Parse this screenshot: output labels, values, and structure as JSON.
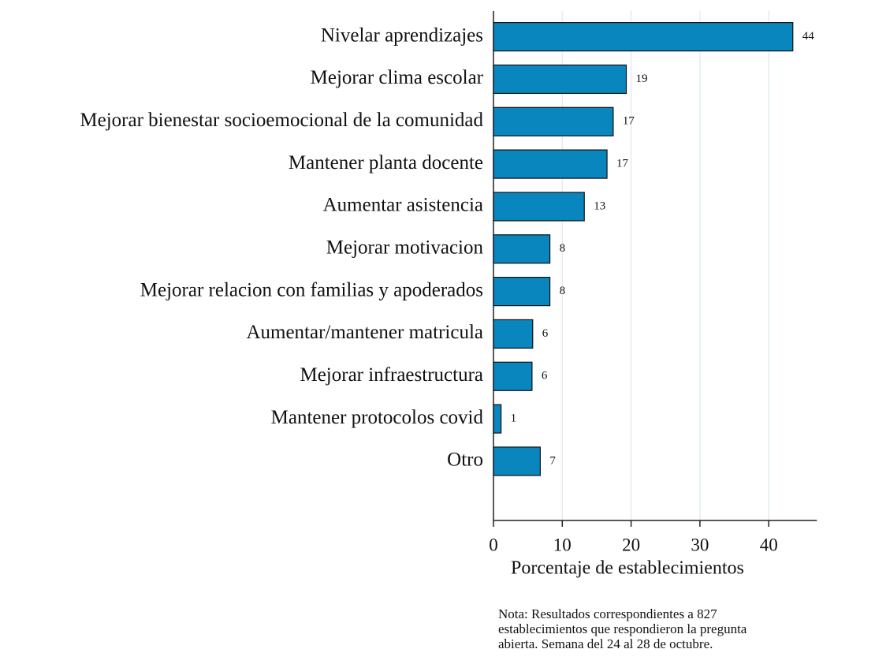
{
  "chart_data": {
    "type": "barh",
    "categories": [
      "Nivelar aprendizajes",
      "Mejorar clima escolar",
      "Mejorar bienestar socioemocional de la comunidad",
      "Mantener planta docente",
      "Aumentar asistencia",
      "Mejorar motivacion",
      "Mejorar relacion con familias y apoderados",
      "Aumentar/mantener matricula",
      "Mejorar infraestructura",
      "Mantener protocolos covid",
      "Otro"
    ],
    "values": [
      43.5,
      19.3,
      17.4,
      16.5,
      13.2,
      8.2,
      8.2,
      5.7,
      5.6,
      1.1,
      6.8
    ],
    "value_labels": [
      "44",
      "19",
      "17",
      "17",
      "13",
      "8",
      "8",
      "6",
      "6",
      "1",
      "7"
    ],
    "color": "#0a86bf",
    "xlim": [
      0,
      47
    ],
    "xticks": [
      0,
      10,
      20,
      30,
      40
    ],
    "grid": true,
    "xlabel": "Porcentaje de establecimientos",
    "note": [
      "Nota: Resultados correspondientes a 827",
      "establecimientos que respondieron la pregunta",
      "abierta. Semana del 24 al 28 de octubre."
    ]
  }
}
